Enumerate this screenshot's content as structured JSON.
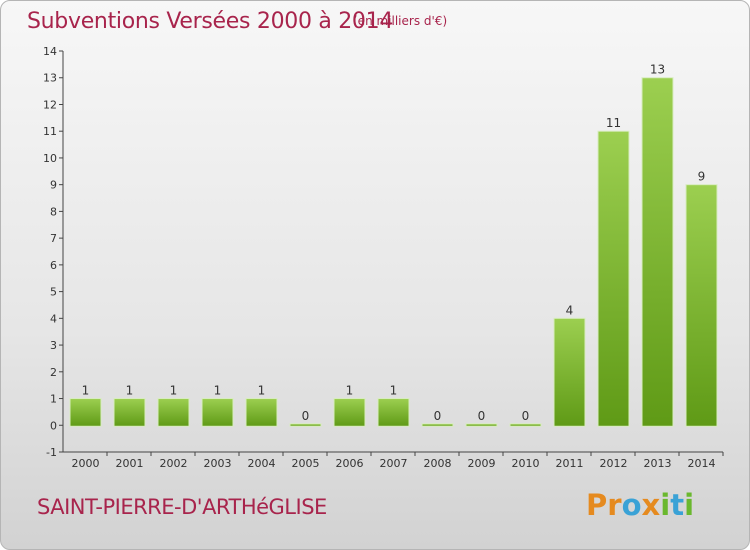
{
  "header": {
    "title": "Subventions Versées 2000 à 2014",
    "units": "(en milliers d'€)"
  },
  "footer": {
    "commune": "SAINT-PIERRE-D'ARTHéGLISE",
    "logo_letters": [
      "P",
      "r",
      "o",
      "x",
      "i",
      "t",
      "i"
    ]
  },
  "chart_data": {
    "type": "bar",
    "title": "Subventions Versées 2000 à 2014",
    "subtitle": "(en milliers d'€)",
    "xlabel": "",
    "ylabel": "",
    "categories": [
      "2000",
      "2001",
      "2002",
      "2003",
      "2004",
      "2005",
      "2006",
      "2007",
      "2008",
      "2009",
      "2010",
      "2011",
      "2012",
      "2013",
      "2014"
    ],
    "values": [
      1,
      1,
      1,
      1,
      1,
      0,
      1,
      1,
      0,
      0,
      0,
      4,
      11,
      13,
      9
    ],
    "data_labels": [
      "1",
      "1",
      "1",
      "1",
      "1",
      "0",
      "1",
      "1",
      "0",
      "0",
      "0",
      "4",
      "11",
      "13",
      "9"
    ],
    "ylim": [
      -1,
      14
    ],
    "yticks": [
      -1,
      0,
      1,
      2,
      3,
      4,
      5,
      6,
      7,
      8,
      9,
      10,
      11,
      12,
      13,
      14
    ],
    "grid": false,
    "bar_color": "#7fbf2a"
  }
}
